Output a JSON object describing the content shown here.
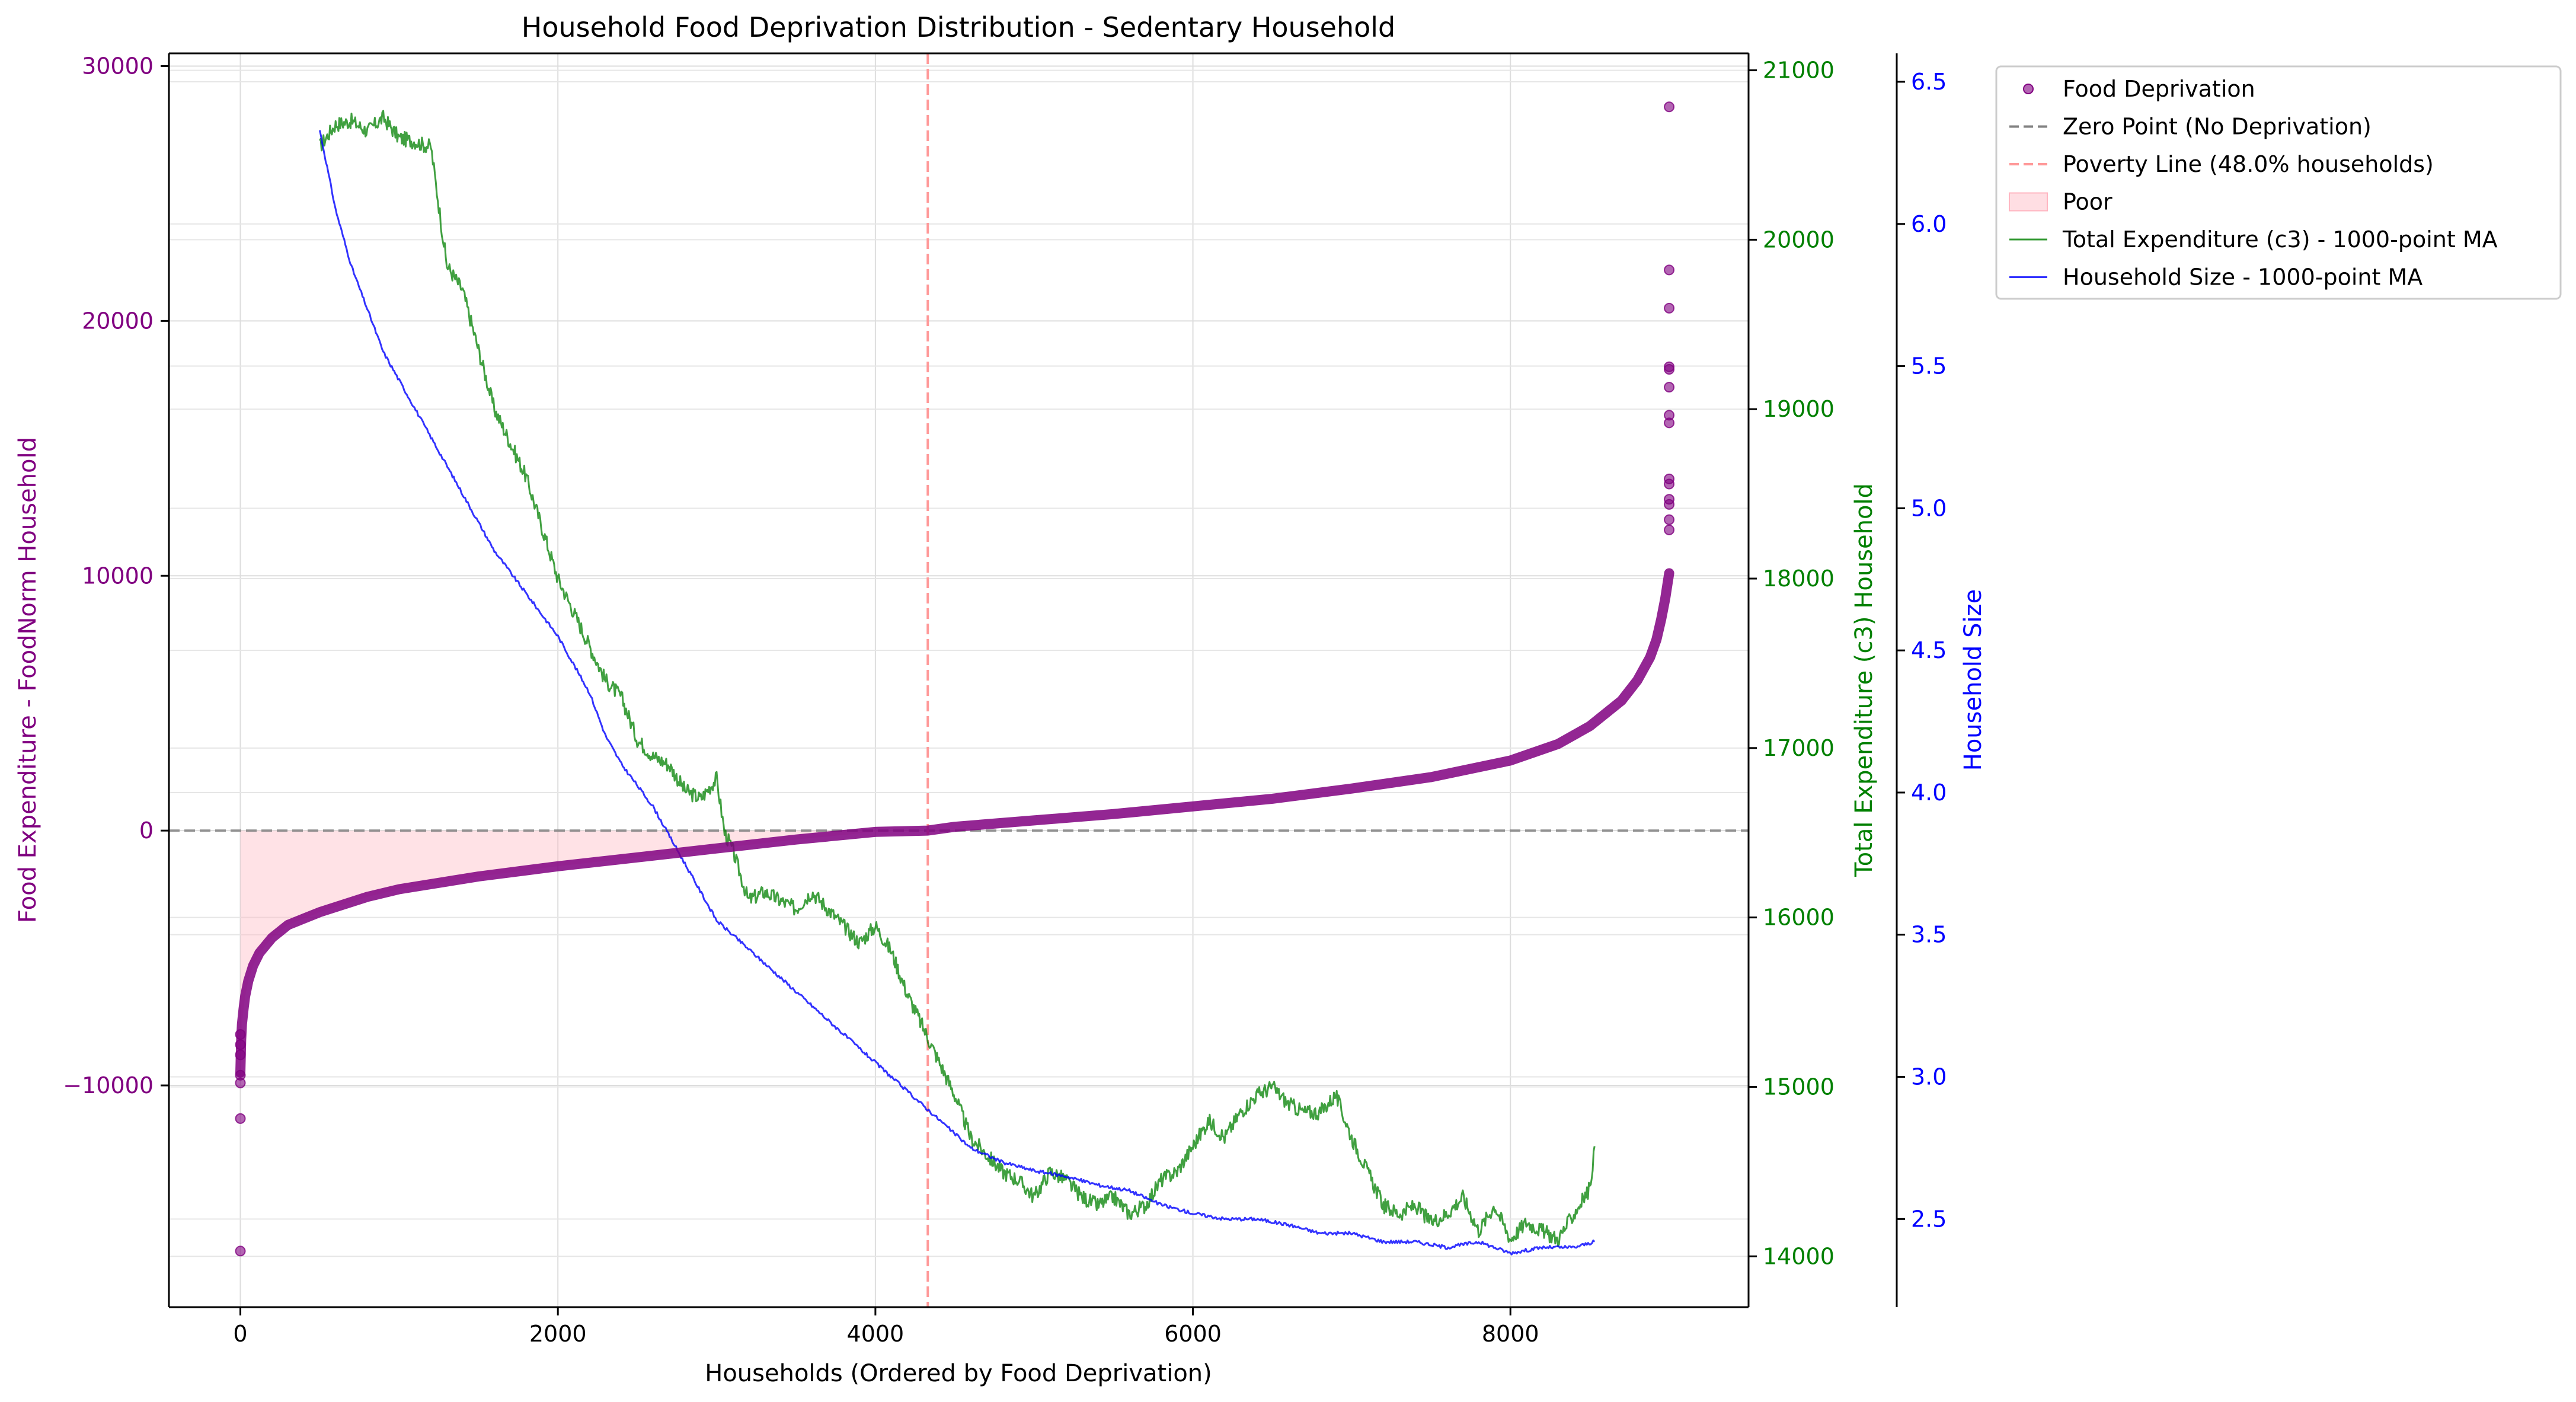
{
  "colors": {
    "left_axis": "#800080",
    "scatter": "#800080",
    "total_exp": "#008000",
    "hh_size": "#0000ff",
    "zero_line": "#808080",
    "poverty_line": "#ff9999",
    "poor_fill": "#ffb6c1"
  },
  "chart_data": {
    "type": "scatter",
    "title": "Household Food Deprivation Distribution - Sedentary Household",
    "xlabel": "Households (Ordered by Food Deprivation)",
    "ylabel_left": "Food Expenditure - FoodNorm Household",
    "ylabel_right1": "Total Expenditure (c3) Household",
    "ylabel_right2": "Household Size",
    "xlim": [
      -450,
      9500
    ],
    "ylim_left": [
      -18700,
      30500
    ],
    "ylim_right1": [
      13700,
      21100
    ],
    "ylim_right2": [
      2.19,
      6.6
    ],
    "xticks": [
      0,
      2000,
      4000,
      6000,
      8000
    ],
    "xtick_labels": [
      "0",
      "2000",
      "4000",
      "6000",
      "8000"
    ],
    "yticks_left": [
      -10000,
      0,
      10000,
      20000,
      30000
    ],
    "ytick_labels_left": [
      "−10000",
      "0",
      "10000",
      "20000",
      "30000"
    ],
    "yticks_right1": [
      14000,
      15000,
      16000,
      17000,
      18000,
      19000,
      20000,
      21000
    ],
    "ytick_labels_right1": [
      "14000",
      "15000",
      "16000",
      "17000",
      "18000",
      "19000",
      "20000",
      "21000"
    ],
    "yticks_right2": [
      2.5,
      3.0,
      3.5,
      4.0,
      4.5,
      5.0,
      5.5,
      6.0,
      6.5
    ],
    "ytick_labels_right2": [
      "2.5",
      "3.0",
      "3.5",
      "4.0",
      "4.5",
      "5.0",
      "5.5",
      "6.0",
      "6.5"
    ],
    "grid": true,
    "legend_position": "outside-right-top",
    "poverty_line_x": 4330,
    "zero_line_y": 0,
    "legend": [
      {
        "label": "Food Deprivation",
        "kind": "marker"
      },
      {
        "label": "Zero Point (No Deprivation)",
        "kind": "dash-gray"
      },
      {
        "label": "Poverty Line (48.0% households)",
        "kind": "dash-red"
      },
      {
        "label": "Poor",
        "kind": "patch"
      },
      {
        "label": "Total Expenditure (c3) - 1000-point MA",
        "kind": "line-green"
      },
      {
        "label": "Household Size - 1000-point MA",
        "kind": "line-blue"
      }
    ],
    "deprivation_curve": {
      "x": [
        0,
        5,
        10,
        20,
        30,
        50,
        80,
        120,
        200,
        300,
        500,
        800,
        1000,
        1500,
        2000,
        2500,
        3000,
        3500,
        4000,
        4330,
        4500,
        5000,
        5500,
        6000,
        6500,
        7000,
        7500,
        8000,
        8300,
        8500,
        8700,
        8800,
        8880,
        8920,
        8950,
        8975,
        8990,
        9000
      ],
      "y": [
        -9500,
        -8200,
        -7600,
        -7000,
        -6500,
        -5900,
        -5300,
        -4800,
        -4200,
        -3700,
        -3200,
        -2600,
        -2300,
        -1800,
        -1400,
        -1050,
        -700,
        -350,
        -50,
        0,
        150,
        400,
        650,
        950,
        1250,
        1650,
        2100,
        2750,
        3400,
        4100,
        5100,
        5900,
        6800,
        7500,
        8300,
        9100,
        9700,
        10100
      ]
    },
    "deprivation_outliers": {
      "x": [
        0,
        0,
        0,
        0,
        0,
        0,
        0,
        9000,
        9000,
        9000,
        9000,
        9000,
        9000,
        9000,
        9000,
        9000,
        9000,
        9000,
        9000,
        9000,
        9000
      ],
      "y": [
        -16500,
        -11300,
        -9900,
        -9600,
        -8800,
        -8400,
        -8000,
        28400,
        22000,
        20500,
        18200,
        18100,
        17400,
        16300,
        16000,
        13800,
        13600,
        13000,
        12800,
        12200,
        11800
      ]
    },
    "total_expenditure_ma": {
      "x": [
        500,
        600,
        700,
        800,
        900,
        1000,
        1100,
        1150,
        1200,
        1250,
        1300,
        1400,
        1500,
        1600,
        1700,
        1800,
        1900,
        2000,
        2100,
        2200,
        2300,
        2400,
        2500,
        2600,
        2700,
        2800,
        2900,
        3000,
        3050,
        3100,
        3200,
        3300,
        3400,
        3500,
        3600,
        3700,
        3800,
        3900,
        4000,
        4100,
        4200,
        4300,
        4400,
        4500,
        4600,
        4700,
        4800,
        4900,
        5000,
        5100,
        5200,
        5300,
        5400,
        5500,
        5600,
        5700,
        5800,
        5900,
        6000,
        6100,
        6200,
        6300,
        6400,
        6500,
        6600,
        6700,
        6800,
        6900,
        7000,
        7100,
        7200,
        7300,
        7400,
        7500,
        7600,
        7700,
        7800,
        7900,
        8000,
        8100,
        8200,
        8300,
        8400,
        8500,
        8530
      ],
      "y": [
        20550,
        20680,
        20700,
        20640,
        20720,
        20600,
        20580,
        20560,
        20550,
        20200,
        19850,
        19700,
        19350,
        19000,
        18800,
        18600,
        18300,
        18000,
        17800,
        17600,
        17400,
        17300,
        17050,
        16950,
        16900,
        16750,
        16700,
        16820,
        16500,
        16400,
        16100,
        16150,
        16100,
        16050,
        16150,
        16050,
        15950,
        15850,
        15950,
        15800,
        15550,
        15350,
        15150,
        14950,
        14700,
        14600,
        14500,
        14450,
        14350,
        14500,
        14450,
        14350,
        14300,
        14350,
        14250,
        14300,
        14450,
        14500,
        14650,
        14800,
        14700,
        14850,
        14950,
        15000,
        14900,
        14850,
        14850,
        14950,
        14700,
        14500,
        14300,
        14250,
        14300,
        14200,
        14250,
        14350,
        14150,
        14300,
        14100,
        14200,
        14150,
        14100,
        14250,
        14400,
        14650
      ]
    },
    "household_size_ma": {
      "x": [
        500,
        600,
        700,
        800,
        900,
        1000,
        1200,
        1400,
        1600,
        1800,
        2000,
        2200,
        2300,
        2400,
        2600,
        2800,
        3000,
        3200,
        3400,
        3600,
        3800,
        4000,
        4200,
        4400,
        4600,
        4800,
        5000,
        5200,
        5400,
        5600,
        5800,
        6000,
        6200,
        6400,
        6600,
        6800,
        7000,
        7200,
        7400,
        7600,
        7800,
        8000,
        8200,
        8400,
        8530
      ],
      "y": [
        6.33,
        6.05,
        5.85,
        5.7,
        5.55,
        5.45,
        5.25,
        5.05,
        4.85,
        4.7,
        4.55,
        4.35,
        4.2,
        4.1,
        3.95,
        3.75,
        3.55,
        3.45,
        3.35,
        3.25,
        3.15,
        3.05,
        2.95,
        2.85,
        2.75,
        2.7,
        2.67,
        2.65,
        2.62,
        2.6,
        2.55,
        2.52,
        2.5,
        2.5,
        2.48,
        2.45,
        2.45,
        2.42,
        2.42,
        2.4,
        2.42,
        2.38,
        2.4,
        2.4,
        2.42
      ]
    }
  }
}
